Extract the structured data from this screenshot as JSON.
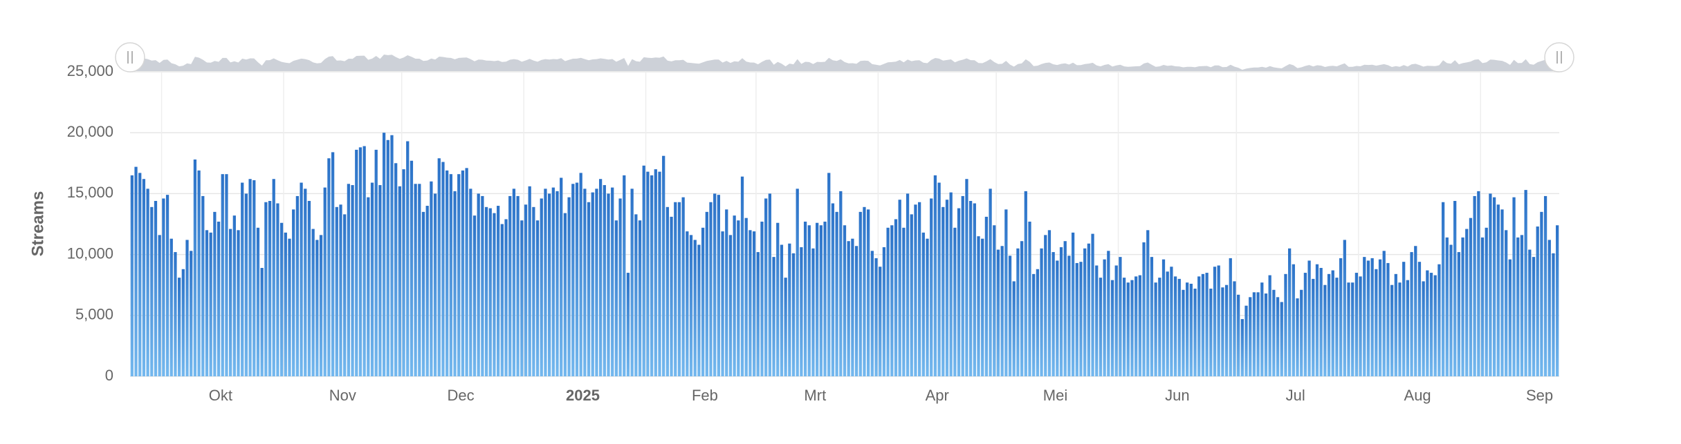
{
  "chart_data": {
    "type": "bar",
    "y_label": "Streams",
    "color": "#2b72c8",
    "color_light": "#74b8ee",
    "navigator_color": "#cdd1d8",
    "xlim": [
      -0.5,
      362.5
    ],
    "xticks": [
      {
        "value": 8,
        "label": "Okt"
      },
      {
        "value": 39,
        "label": "Nov"
      },
      {
        "value": 69,
        "label": "Dec"
      },
      {
        "value": 100,
        "label": "2025",
        "bold": true
      },
      {
        "value": 131,
        "label": "Feb"
      },
      {
        "value": 159,
        "label": "Mrt"
      },
      {
        "value": 190,
        "label": "Apr"
      },
      {
        "value": 220,
        "label": "Mei"
      },
      {
        "value": 251,
        "label": "Jun"
      },
      {
        "value": 281,
        "label": "Jul"
      },
      {
        "value": 312,
        "label": "Aug"
      },
      {
        "value": 343,
        "label": "Sep"
      }
    ],
    "ylim": [
      0,
      25000
    ],
    "yticks": [
      0,
      {
        "value": 5000,
        "label": "5,000"
      },
      {
        "value": 10000,
        "label": "10,000"
      },
      {
        "value": 15000,
        "label": "15,000"
      },
      {
        "value": 20000,
        "label": "20,000"
      },
      {
        "value": 25000,
        "label": "25,000"
      }
    ],
    "grid": true,
    "values": [
      16500,
      17200,
      16700,
      16200,
      15400,
      13900,
      14400,
      11600,
      14600,
      14900,
      11300,
      10200,
      8100,
      8800,
      11200,
      10300,
      17800,
      16900,
      14800,
      12000,
      11800,
      13500,
      12700,
      16600,
      16600,
      12100,
      13200,
      12000,
      15900,
      15000,
      16200,
      16100,
      12200,
      8900,
      14300,
      14400,
      16200,
      14200,
      12600,
      11800,
      11300,
      13700,
      14800,
      15900,
      15400,
      14400,
      12100,
      11200,
      11600,
      15500,
      17900,
      18400,
      13900,
      14100,
      13300,
      15800,
      15700,
      18600,
      18800,
      18900,
      14700,
      15900,
      18600,
      15700,
      20000,
      19400,
      19800,
      17500,
      15600,
      17000,
      19300,
      17700,
      15800,
      15800,
      13500,
      14000,
      16000,
      15000,
      17900,
      17600,
      16900,
      16600,
      15200,
      16600,
      16900,
      17100,
      15400,
      13200,
      15000,
      14800,
      13900,
      13800,
      13400,
      14000,
      12500,
      12900,
      14800,
      15400,
      14800,
      12800,
      14100,
      15600,
      13900,
      12800,
      14600,
      15400,
      15000,
      15500,
      15200,
      16300,
      13400,
      14700,
      15800,
      15900,
      16700,
      15400,
      14300,
      15100,
      15400,
      16200,
      15700,
      15000,
      15500,
      12800,
      14600,
      16500,
      8500,
      15400,
      13300,
      12800,
      17300,
      16800,
      16500,
      17000,
      16800,
      18100,
      13900,
      13100,
      14300,
      14300,
      14700,
      11900,
      11600,
      11200,
      10800,
      12200,
      13500,
      14300,
      15000,
      14900,
      11900,
      13700,
      11600,
      13200,
      12800,
      16400,
      13000,
      12000,
      11900,
      10200,
      12700,
      14600,
      15000,
      9800,
      12600,
      10800,
      8100,
      10900,
      10100,
      15400,
      10600,
      12700,
      12400,
      10500,
      12600,
      12400,
      12700,
      16700,
      14200,
      13500,
      15200,
      12400,
      11100,
      11300,
      10700,
      13500,
      13900,
      13700,
      10300,
      9700,
      9000,
      10600,
      12200,
      12400,
      12900,
      14500,
      12200,
      15000,
      13300,
      14100,
      14300,
      11800,
      11300,
      14600,
      16500,
      15900,
      13900,
      14500,
      15100,
      12200,
      13800,
      14800,
      16200,
      14400,
      14200,
      11500,
      11300,
      13100,
      15400,
      12400,
      10400,
      10700,
      13700,
      9900,
      7800,
      10500,
      11100,
      15200,
      12700,
      8400,
      8800,
      10500,
      11600,
      12000,
      10200,
      9500,
      10600,
      11100,
      9900,
      11800,
      9300,
      9400,
      10500,
      10900,
      11700,
      9100,
      8100,
      9600,
      10300,
      7900,
      9100,
      9800,
      8100,
      7700,
      7900,
      8200,
      8300,
      11000,
      12000,
      9800,
      7700,
      8100,
      9600,
      8600,
      9000,
      8200,
      8000,
      7100,
      7700,
      7600,
      7200,
      8200,
      8400,
      8500,
      7200,
      9000,
      9100,
      7300,
      7500,
      9700,
      7800,
      6700,
      4700,
      5800,
      6500,
      6900,
      6900,
      7700,
      6800,
      8300,
      7100,
      6500,
      6100,
      8400,
      10500,
      9200,
      6400,
      7100,
      8500,
      9500,
      8000,
      9200,
      8900,
      7500,
      8400,
      8700,
      8100,
      9700,
      11200,
      7700,
      7700,
      8500,
      8200,
      9800,
      9500,
      9700,
      8800,
      9600,
      10300,
      9300,
      7500,
      8400,
      7700,
      9400,
      7900,
      10200,
      10700,
      9400,
      7800,
      8700,
      8500,
      8300,
      9200,
      14300,
      11400,
      10800,
      14400,
      10200,
      11400,
      12100,
      13000,
      14800,
      15200,
      11400,
      12200,
      15000,
      14700,
      14100,
      13700,
      12000,
      9600,
      14700,
      11400,
      11600,
      15300,
      10400,
      9800,
      12300,
      13500,
      14800,
      11200,
      10100,
      12400
    ]
  }
}
